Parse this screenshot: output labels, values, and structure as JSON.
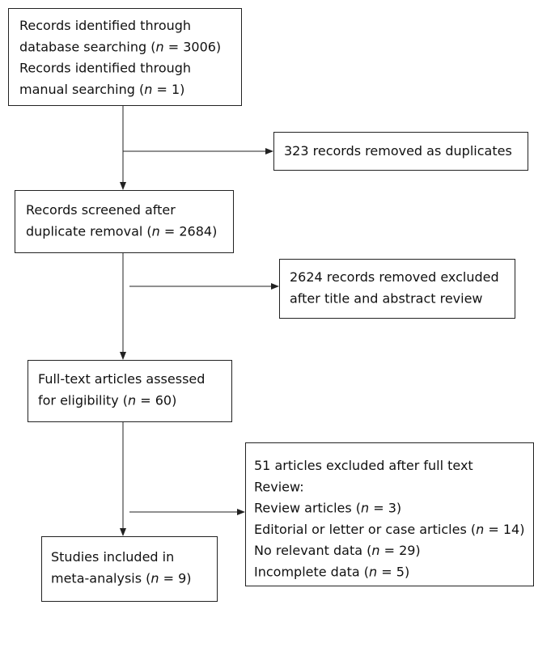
{
  "boxes": [
    {
      "lines": [
        [
          {
            "text": "Records identified through"
          }
        ],
        [
          {
            "text": "database searching ("
          },
          {
            "text": "n",
            "style": "italic"
          },
          {
            "text": " = 3006)"
          }
        ],
        [
          {
            "text": "Records identified through"
          }
        ],
        [
          {
            "text": "manual searching ("
          },
          {
            "text": "n",
            "style": "italic"
          },
          {
            "text": " = 1)"
          }
        ]
      ]
    },
    {
      "lines": [
        [
          {
            "text": "323 records removed as duplicates"
          }
        ]
      ]
    },
    {
      "lines": [
        [
          {
            "text": "Records screened after"
          }
        ],
        [
          {
            "text": "duplicate removal ("
          },
          {
            "text": "n",
            "style": "italic"
          },
          {
            "text": " = 2684)"
          }
        ]
      ]
    },
    {
      "lines": [
        [
          {
            "text": "2624 records removed excluded"
          }
        ],
        [
          {
            "text": "after title and abstract review"
          }
        ]
      ]
    },
    {
      "lines": [
        [
          {
            "text": "Full-text articles assessed"
          }
        ],
        [
          {
            "text": "for eligibility ("
          },
          {
            "text": "n",
            "style": "italic"
          },
          {
            "text": " = 60)"
          }
        ]
      ]
    },
    {
      "lines": [
        [
          {
            "text": "51 articles excluded after full text"
          }
        ],
        [
          {
            "text": "Review:"
          }
        ],
        [
          {
            "text": "Review articles ("
          },
          {
            "text": "n",
            "style": "italic"
          },
          {
            "text": " = 3)"
          }
        ],
        [
          {
            "text": "Editorial or letter or case articles ("
          },
          {
            "text": "n",
            "style": "italic"
          },
          {
            "text": " = 14)"
          }
        ],
        [
          {
            "text": "No relevant data ("
          },
          {
            "text": "n",
            "style": "italic"
          },
          {
            "text": " = 29)"
          }
        ],
        [
          {
            "text": "Incomplete data ("
          },
          {
            "text": "n",
            "style": "italic"
          },
          {
            "text": " = 5)"
          }
        ]
      ]
    },
    {
      "lines": [
        [
          {
            "text": "Studies included in"
          }
        ],
        [
          {
            "text": "meta-analysis ("
          },
          {
            "text": "n",
            "style": "italic"
          },
          {
            "text": " = 9)"
          }
        ]
      ]
    }
  ]
}
